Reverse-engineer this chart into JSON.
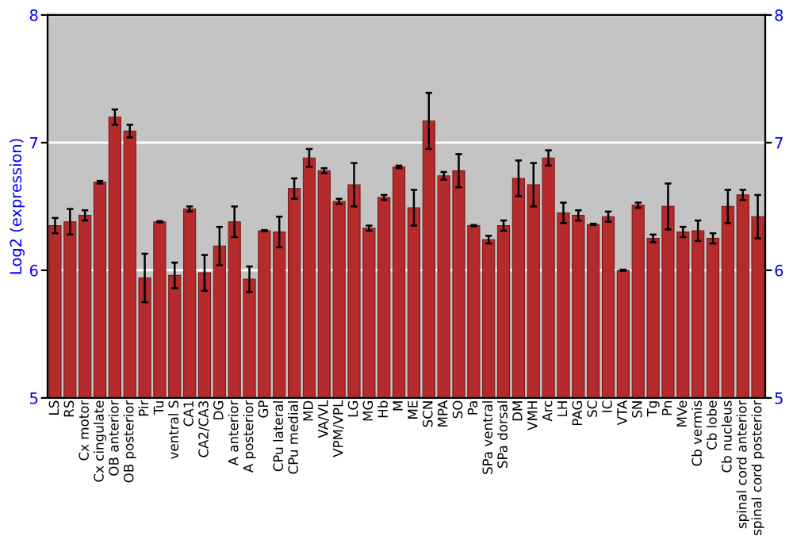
{
  "chart_data": {
    "type": "bar",
    "ylabel": "Log2 (expression)",
    "categories": [
      "LS",
      "RS",
      "Cx motor",
      "Cx cingulate",
      "OB anterior",
      "OB posterior",
      "Pir",
      "Tu",
      "ventral S",
      "CA1",
      "CA2/CA3",
      "DG",
      "A anterior",
      "A posterior",
      "GP",
      "CPu lateral",
      "CPu medial",
      "MD",
      "VA/VL",
      "VPM/VPL",
      "LG",
      "MG",
      "Hb",
      "M",
      "ME",
      "SCN",
      "MPA",
      "SO",
      "Pa",
      "SPa ventral",
      "SPa dorsal",
      "DM",
      "VMH",
      "Arc",
      "LH",
      "PAG",
      "SC",
      "IC",
      "VTA",
      "SN",
      "Tg",
      "Pn",
      "MVe",
      "Cb vermis",
      "Cb lobe",
      "Cb nucleus",
      "spinal cord anterior",
      "spinal cord posterior"
    ],
    "values": [
      6.35,
      6.38,
      6.43,
      6.69,
      7.2,
      7.09,
      5.94,
      6.38,
      5.96,
      6.48,
      5.98,
      6.19,
      6.38,
      5.93,
      6.31,
      6.3,
      6.64,
      6.88,
      6.78,
      6.54,
      6.67,
      6.33,
      6.57,
      6.81,
      6.49,
      7.17,
      6.74,
      6.78,
      6.35,
      6.24,
      6.35,
      6.72,
      6.67,
      6.88,
      6.45,
      6.43,
      6.36,
      6.42,
      6.0,
      6.51,
      6.25,
      6.5,
      6.3,
      6.31,
      6.25,
      6.5,
      6.59,
      6.42
    ],
    "errors": [
      0.06,
      0.1,
      0.04,
      0.01,
      0.06,
      0.05,
      0.19,
      0.005,
      0.1,
      0.02,
      0.14,
      0.15,
      0.12,
      0.1,
      0.005,
      0.12,
      0.08,
      0.07,
      0.02,
      0.02,
      0.17,
      0.02,
      0.02,
      0.01,
      0.14,
      0.22,
      0.03,
      0.13,
      0.005,
      0.03,
      0.04,
      0.14,
      0.17,
      0.06,
      0.08,
      0.04,
      0.005,
      0.04,
      0.005,
      0.02,
      0.03,
      0.18,
      0.04,
      0.08,
      0.04,
      0.13,
      0.04,
      0.17
    ],
    "color": "#b52a2a",
    "ylim": [
      5,
      8
    ],
    "yticks": [
      5,
      6,
      7,
      8
    ],
    "y2lim": [
      5,
      8
    ],
    "y2ticks": [
      5,
      6,
      7,
      8
    ],
    "grid": "y"
  }
}
